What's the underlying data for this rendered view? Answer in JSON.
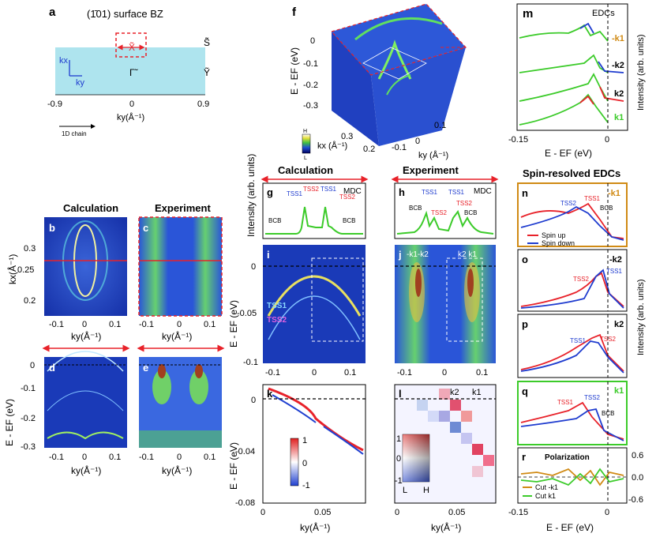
{
  "panels": {
    "a": {
      "letter": "a",
      "title": "(1̄01) surface BZ",
      "x_point": "X̃",
      "s_point": "S̃",
      "g_point": "Γ̃",
      "y_point": "Ỹ",
      "kx": "kx",
      "ky": "ky",
      "ticks": [
        "-0.9",
        "0",
        "0.9"
      ],
      "xlabel": "ky(Å⁻¹)",
      "chain_label": "1D chain"
    },
    "b": {
      "letter": "b",
      "title": "Calculation",
      "yticks": [
        "0.3",
        "0.25",
        "0.2"
      ],
      "xticks": [
        "-0.1",
        "0",
        "0.1"
      ],
      "ylabel": "kx(Å⁻¹)",
      "xlabel": "ky(Å⁻¹)"
    },
    "c": {
      "letter": "c",
      "title": "Experiment",
      "xticks": [
        "-0.1",
        "0",
        "0.1"
      ],
      "xlabel": "ky(Å⁻¹)"
    },
    "d": {
      "letter": "d",
      "yticks": [
        "0",
        "-0.1",
        "-0.2",
        "-0.3"
      ],
      "xticks": [
        "-0.1",
        "0",
        "0.1"
      ],
      "ylabel": "E - EF (eV)",
      "xlabel": "ky(Å⁻¹)"
    },
    "e": {
      "letter": "e",
      "xticks": [
        "-0.1",
        "0",
        "0.1"
      ],
      "xlabel": "ky(Å⁻¹)"
    },
    "f": {
      "letter": "f",
      "yticks": [
        "0",
        "-0.1",
        "-0.2",
        "-0.3"
      ],
      "ylabel": "E - EF (eV)",
      "kx_ticks": [
        "0.3",
        "0.2"
      ],
      "ky_ticks": [
        "-0.1",
        "0",
        "0.1"
      ],
      "kx_label": "kx (Å⁻¹)",
      "ky_label": "ky (Å⁻¹)",
      "cbar_h": "H",
      "cbar_l": "L"
    },
    "g": {
      "letter": "g",
      "tag": "MDC",
      "tss1": "TSS1",
      "tss2": "TSS2",
      "bcb": "BCB",
      "ylabel": "Intensity (arb. units)"
    },
    "h": {
      "letter": "h",
      "tag": "MDC",
      "tss1": "TSS1",
      "tss2": "TSS2",
      "bcb": "BCB"
    },
    "i": {
      "letter": "i",
      "tss1": "TSS1",
      "tss2": "TSS2",
      "yticks": [
        "0",
        "-0.05",
        "-0.1"
      ],
      "xticks": [
        "-0.1",
        "0",
        "0.1"
      ],
      "ylabel": "E - EF (eV)"
    },
    "j": {
      "letter": "j",
      "cuts": "-k1-k2",
      "cuts2": "k2 k1",
      "xticks": [
        "-0.1",
        "0",
        "0.1"
      ]
    },
    "k": {
      "letter": "k",
      "yticks": [
        "0",
        "-0.04",
        "-0.08"
      ],
      "xticks": [
        "0",
        "0.05"
      ],
      "ylabel": "E - EF (eV)",
      "xlabel": "ky(Å⁻¹)",
      "cbar": [
        "1",
        "0",
        "-1"
      ]
    },
    "l": {
      "letter": "l",
      "k2": "k2",
      "k1": "k1",
      "xticks": [
        "0",
        "0.05"
      ],
      "xlabel": "ky(Å⁻¹)",
      "cbar": [
        "1",
        "0",
        "-1"
      ],
      "cbar_l": "L",
      "cbar_h": "H"
    },
    "m": {
      "letter": "m",
      "tag": "EDCs",
      "cuts": [
        "-k1",
        "-k2",
        "k2",
        "k1"
      ],
      "xticks": [
        "-0.15",
        "0"
      ],
      "xlabel": "E - EF (eV)",
      "ylabel": "Intensity (arb. units)"
    },
    "n": {
      "letter": "n",
      "cut": "-k1",
      "tss1": "TSS1",
      "tss2": "TSS2",
      "bcb": "BCB",
      "legend_up": "Spin up",
      "legend_down": "Spin down"
    },
    "o": {
      "letter": "o",
      "cut": "-k2",
      "tss1": "TSS1",
      "tss2": "TSS2"
    },
    "p": {
      "letter": "p",
      "cut": "k2",
      "tss1": "TSS1",
      "tss2": "TSS2"
    },
    "q": {
      "letter": "q",
      "cut": "k1",
      "tss1": "TSS1",
      "tss2": "TSS2",
      "bcb": "BCB"
    },
    "r": {
      "letter": "r",
      "title": "Polarization",
      "legend1": "Cut -k1",
      "legend2": "Cut k1",
      "yticks": [
        "0.6",
        "0.0",
        "-0.6"
      ],
      "xticks": [
        "-0.15",
        "0"
      ],
      "xlabel": "E - EF (eV)"
    }
  },
  "headers": {
    "calc": "Calculation",
    "exp": "Experiment",
    "spin": "Spin-resolved EDCs",
    "side_ylabel": "Intensity (arb. units)"
  },
  "colors": {
    "blue": "#1f3ccf",
    "red": "#e8222a",
    "green": "#3ccb2a",
    "orange": "#d08a14",
    "cyan": "#aee4ee"
  }
}
